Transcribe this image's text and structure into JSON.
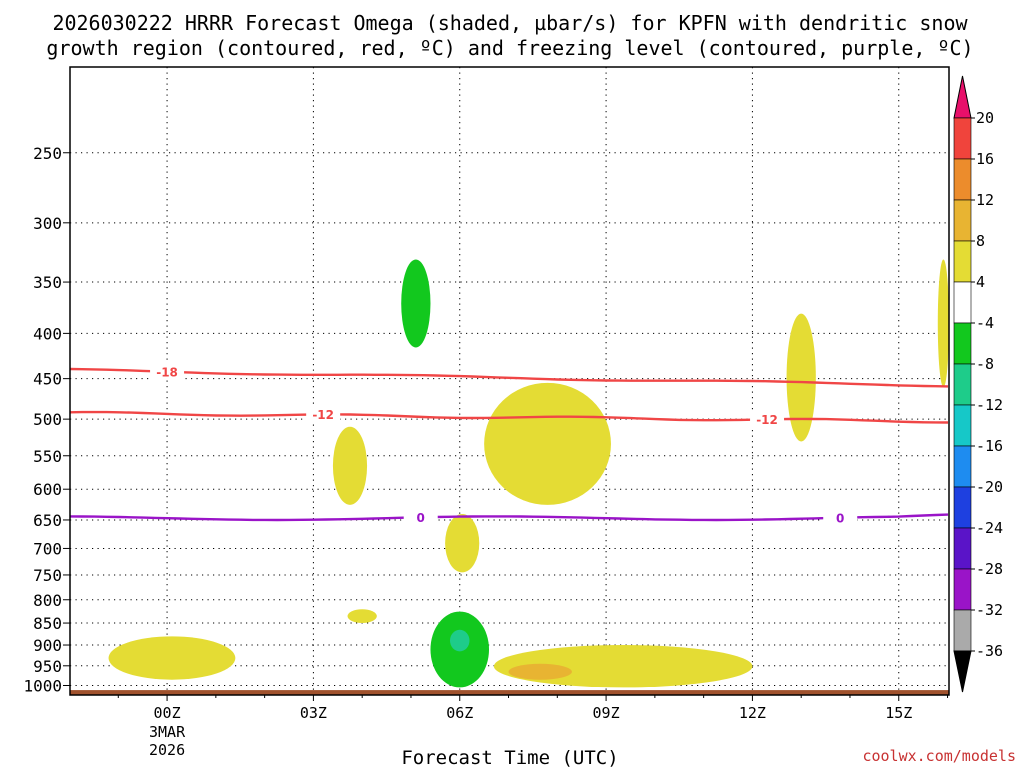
{
  "chart_data": {
    "type": "time-height cross-section",
    "title_line1": "2026030222 HRRR Forecast Omega (shaded, µbar/s) for KPFN with dendritic snow",
    "title_line2": "growth region (contoured, red, ºC) and freezing level (contoured, purple, ºC)",
    "xlabel": "Forecast Time (UTC)",
    "x_range_hours": [
      -1.99,
      16.03
    ],
    "x_ticks": [
      {
        "hour": 0,
        "label": "00Z",
        "sub1": "3MAR",
        "sub2": "2026"
      },
      {
        "hour": 3,
        "label": "03Z",
        "sub1": "",
        "sub2": ""
      },
      {
        "hour": 6,
        "label": "06Z",
        "sub1": "",
        "sub2": ""
      },
      {
        "hour": 9,
        "label": "09Z",
        "sub1": "",
        "sub2": ""
      },
      {
        "hour": 12,
        "label": "12Z",
        "sub1": "",
        "sub2": ""
      },
      {
        "hour": 15,
        "label": "15Z",
        "sub1": "",
        "sub2": ""
      }
    ],
    "y_axis": "pressure (mb), log scale, inverted",
    "y_range_mb": [
      1025,
      200
    ],
    "y_ticks": [
      250,
      300,
      350,
      400,
      450,
      500,
      550,
      600,
      650,
      700,
      750,
      800,
      850,
      900,
      950,
      1000
    ],
    "grid": "dotted",
    "omega_colorbar": {
      "levels": [
        20,
        16,
        12,
        8,
        4,
        -4,
        -8,
        -12,
        -16,
        -20,
        -24,
        -28,
        -32,
        -36
      ],
      "colors": [
        "#e8106a",
        "#f0443c",
        "#ec8c2c",
        "#e8b432",
        "#e4dc34",
        "#ffffff",
        "#12c81e",
        "#1ecc8a",
        "#16c8c8",
        "#1e8cf0",
        "#1e40e0",
        "#5a14c8",
        "#9a14c8",
        "#aaaaaa",
        "#000000"
      ]
    },
    "omega_regions": [
      {
        "value_range": "4 to 8",
        "color": "#e4dc34",
        "hour_span": [
          -1.2,
          1.4
        ],
        "pressure_span_mb": [
          880,
          985
        ]
      },
      {
        "value_range": "4 to 8",
        "color": "#e4dc34",
        "hour_span": [
          3.4,
          4.1
        ],
        "pressure_span_mb": [
          510,
          625
        ]
      },
      {
        "value_range": "4 to 8",
        "color": "#e4dc34",
        "hour_span": [
          3.7,
          4.3
        ],
        "pressure_span_mb": [
          820,
          850
        ]
      },
      {
        "value_range": "4 to 8",
        "color": "#e4dc34",
        "hour_span": [
          5.7,
          6.4
        ],
        "pressure_span_mb": [
          640,
          745
        ]
      },
      {
        "value_range": "4 to 8",
        "color": "#e4dc34",
        "hour_span": [
          6.5,
          9.1
        ],
        "pressure_span_mb": [
          455,
          625
        ]
      },
      {
        "value_range": "4 to 8",
        "color": "#e4dc34",
        "hour_span": [
          6.7,
          12.0
        ],
        "pressure_span_mb": [
          900,
          1005
        ]
      },
      {
        "value_range": "8 to 12",
        "color": "#e8b432",
        "hour_span": [
          7.0,
          8.3
        ],
        "pressure_span_mb": [
          945,
          985
        ]
      },
      {
        "value_range": "4 to 8",
        "color": "#e4dc34",
        "hour_span": [
          12.7,
          13.3
        ],
        "pressure_span_mb": [
          380,
          530
        ]
      },
      {
        "value_range": "4 to 8",
        "color": "#e4dc34",
        "hour_span": [
          15.8,
          16.03
        ],
        "pressure_span_mb": [
          330,
          460
        ]
      },
      {
        "value_range": "-4 to -8",
        "color": "#12c81e",
        "hour_span": [
          4.8,
          5.4
        ],
        "pressure_span_mb": [
          330,
          415
        ]
      },
      {
        "value_range": "-4 to -8",
        "color": "#12c81e",
        "hour_span": [
          5.4,
          6.6
        ],
        "pressure_span_mb": [
          825,
          1005
        ]
      },
      {
        "value_range": "-8 to -12",
        "color": "#1ecc8a",
        "hour_span": [
          5.8,
          6.2
        ],
        "pressure_span_mb": [
          865,
          915
        ]
      }
    ],
    "temperature_contours": [
      {
        "value": -18,
        "label": "-18",
        "color": "#f04646",
        "mean_pressure_mb": 445,
        "pressure_trend": "~440 mb at 01Z sloping to ~458 mb at 16Z"
      },
      {
        "value": -12,
        "label": "-12",
        "color": "#f04646",
        "mean_pressure_mb": 497,
        "pressure_trend": "~492 mb at 01Z sloping to ~503 mb at 16Z"
      },
      {
        "value": 0,
        "label": "0",
        "color": "#9a14c8",
        "mean_pressure_mb": 648,
        "pressure_trend": "nearly flat near 645-650 mb (freezing level)"
      }
    ]
  },
  "colorbar_labels": [
    "20",
    "16",
    "12",
    "8",
    "4",
    "-4",
    "-8",
    "-12",
    "-16",
    "-20",
    "-24",
    "-28",
    "-32",
    "-36"
  ],
  "credit": "coolwx.com/models",
  "colors": {
    "ground": "#a0522d",
    "frame": "#000000",
    "credit": "#c83232"
  }
}
